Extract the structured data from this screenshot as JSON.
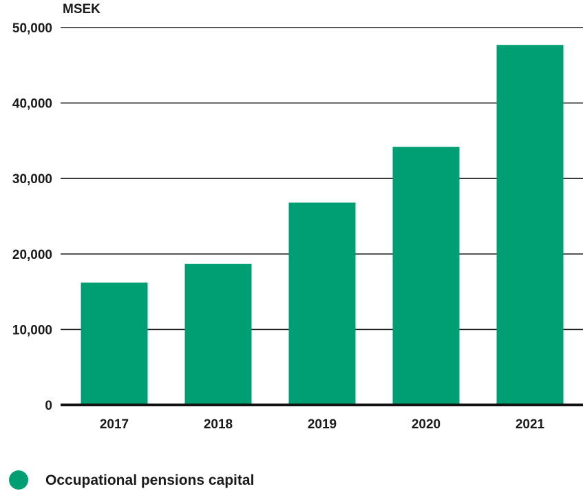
{
  "chart_data": {
    "type": "bar",
    "unit_label": "MSEK",
    "categories": [
      "2017",
      "2018",
      "2019",
      "2020",
      "2021"
    ],
    "series": [
      {
        "name": "Occupational pensions capital",
        "values": [
          16200,
          18700,
          26800,
          34200,
          47700
        ],
        "color": "#009e73"
      }
    ],
    "y_ticks": [
      0,
      10000,
      20000,
      30000,
      40000,
      50000
    ],
    "y_tick_labels": [
      "0",
      "10,000",
      "20,000",
      "30,000",
      "40,000",
      "50,000"
    ],
    "ylim": [
      0,
      50000
    ],
    "grid": true,
    "legend_position": "bottom-left",
    "title": "",
    "xlabel": "",
    "ylabel": "MSEK"
  }
}
